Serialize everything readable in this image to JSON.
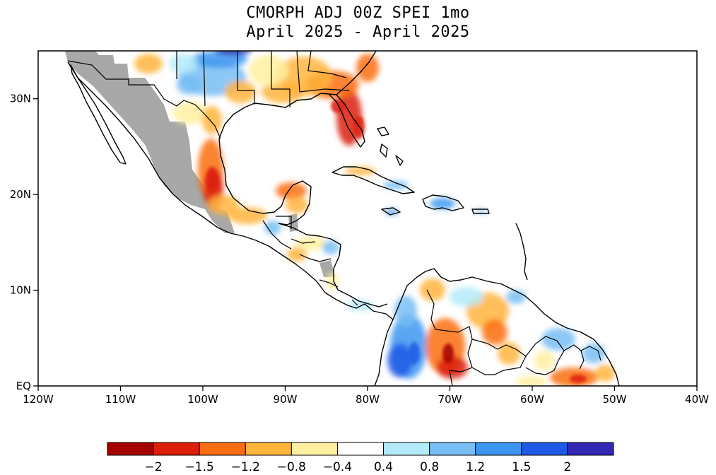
{
  "title": {
    "line1": "CMORPH ADJ 00Z SPEI 1mo",
    "line2": "April 2025 - April 2025"
  },
  "map": {
    "lon_range": [
      -120,
      -40
    ],
    "lat_range": [
      0,
      35
    ],
    "x_ticks": [
      {
        "lon": -120,
        "label": "120W"
      },
      {
        "lon": -110,
        "label": "110W"
      },
      {
        "lon": -100,
        "label": "100W"
      },
      {
        "lon": -90,
        "label": "90W"
      },
      {
        "lon": -80,
        "label": "80W"
      },
      {
        "lon": -70,
        "label": "70W"
      },
      {
        "lon": -60,
        "label": "60W"
      },
      {
        "lon": -50,
        "label": "50W"
      },
      {
        "lon": -40,
        "label": "40W"
      }
    ],
    "y_ticks": [
      {
        "lat": 0,
        "label": "EQ"
      },
      {
        "lat": 10,
        "label": "10N"
      },
      {
        "lat": 20,
        "label": "20N"
      },
      {
        "lat": 30,
        "label": "30N"
      }
    ],
    "missing_color": "#a8a8a8",
    "coast_color": "#000000"
  },
  "colorbar": {
    "colors": [
      "#a50000",
      "#dc1e0a",
      "#fa6e10",
      "#ffb43c",
      "#fff0a0",
      "#ffffff",
      "#b4ebfa",
      "#78bef5",
      "#3c96f0",
      "#1e5ae6",
      "#3228b4"
    ],
    "labels": [
      "-2",
      "-1.5",
      "-1.2",
      "-0.8",
      "-0.4",
      "0.4",
      "0.8",
      "1.2",
      "1.5",
      "2"
    ]
  }
}
